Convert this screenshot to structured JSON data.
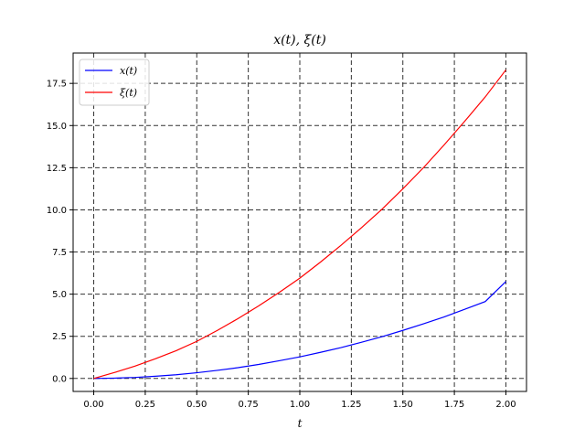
{
  "chart_data": {
    "type": "line",
    "title": "x(t), ξ(t)",
    "xlabel": "t",
    "ylabel": "",
    "xlim": [
      -0.1,
      2.1
    ],
    "ylim": [
      -0.77,
      19.3
    ],
    "xticks": [
      0.0,
      0.25,
      0.5,
      0.75,
      1.0,
      1.25,
      1.5,
      1.75,
      2.0
    ],
    "xtick_labels": [
      "0.00",
      "0.25",
      "0.50",
      "0.75",
      "1.00",
      "1.25",
      "1.50",
      "1.75",
      "2.00"
    ],
    "yticks": [
      0.0,
      2.5,
      5.0,
      7.5,
      10.0,
      12.5,
      15.0,
      17.5
    ],
    "ytick_labels": [
      "0.0",
      "2.5",
      "5.0",
      "7.5",
      "10.0",
      "12.5",
      "15.0",
      "17.5"
    ],
    "grid": true,
    "legend_position": "top-left",
    "series": [
      {
        "name": "x(t)",
        "color": "#0000ff",
        "x": [
          0.0,
          0.1,
          0.2,
          0.3,
          0.4,
          0.5,
          0.6,
          0.7,
          0.8,
          0.9,
          1.0,
          1.1,
          1.2,
          1.3,
          1.4,
          1.5,
          1.6,
          1.7,
          1.8,
          1.9,
          2.0
        ],
        "y": [
          0.0,
          0.02,
          0.06,
          0.13,
          0.22,
          0.34,
          0.48,
          0.64,
          0.83,
          1.05,
          1.28,
          1.55,
          1.83,
          2.15,
          2.48,
          2.85,
          3.24,
          3.65,
          4.1,
          4.56,
          5.75
        ]
      },
      {
        "name": "ξ(t)",
        "color": "#ff0000",
        "x": [
          0.0,
          0.1,
          0.2,
          0.3,
          0.4,
          0.5,
          0.6,
          0.7,
          0.8,
          0.9,
          1.0,
          1.1,
          1.2,
          1.3,
          1.4,
          1.5,
          1.6,
          1.7,
          1.8,
          1.9,
          2.0
        ],
        "y": [
          0.0,
          0.35,
          0.73,
          1.17,
          1.65,
          2.2,
          2.85,
          3.55,
          4.3,
          5.1,
          5.95,
          6.9,
          7.9,
          8.95,
          10.05,
          11.25,
          12.5,
          13.85,
          15.25,
          16.7,
          18.3
        ]
      }
    ]
  }
}
